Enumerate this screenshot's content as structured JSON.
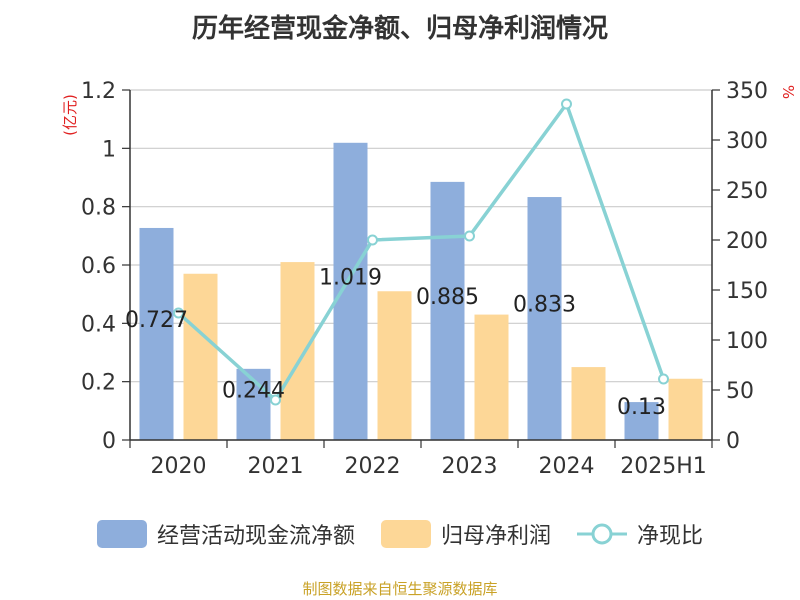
{
  "title": "历年经营现金净额、归母净利润情况",
  "left_unit": "(亿元)",
  "right_unit": "%",
  "source": "制图数据来自恒生聚源数据库",
  "colors": {
    "cash": "#8eaedc",
    "profit": "#fdd797",
    "ratio": "#88d2d4",
    "left_unit": "#e02020",
    "grid": "#cccccc",
    "axis": "#333333",
    "source": "#c9a227"
  },
  "legend": [
    {
      "label": "经营活动现金流净额",
      "key": "cash"
    },
    {
      "label": "归母净利润",
      "key": "profit"
    },
    {
      "label": "净现比",
      "key": "ratio"
    }
  ],
  "chart_data": {
    "type": "bar",
    "categories": [
      "2020",
      "2021",
      "2022",
      "2023",
      "2024",
      "2025H1"
    ],
    "series": [
      {
        "name": "经营活动现金流净额",
        "type": "bar",
        "axis": "left",
        "values": [
          0.727,
          0.244,
          1.019,
          0.885,
          0.833,
          0.13
        ],
        "labels": [
          "0.727",
          "0.244",
          "1.019",
          "0.885",
          "0.833",
          "0.13"
        ]
      },
      {
        "name": "归母净利润",
        "type": "bar",
        "axis": "left",
        "values": [
          0.57,
          0.61,
          0.51,
          0.43,
          0.25,
          0.21
        ]
      },
      {
        "name": "净现比",
        "type": "line",
        "axis": "right",
        "values": [
          127,
          40,
          200,
          204,
          336,
          61
        ]
      }
    ],
    "left_axis": {
      "min": 0,
      "max": 1.2,
      "ticks": [
        0,
        0.2,
        0.4,
        0.6,
        0.8,
        1,
        1.2
      ],
      "tick_labels": [
        "0",
        "0.2",
        "0.4",
        "0.6",
        "0.8",
        "1",
        "1.2"
      ]
    },
    "right_axis": {
      "min": 0,
      "max": 350,
      "ticks": [
        0,
        50,
        100,
        150,
        200,
        250,
        300,
        350
      ],
      "tick_labels": [
        "0",
        "50",
        "100",
        "150",
        "200",
        "250",
        "300",
        "350"
      ]
    },
    "grid": true,
    "legend_position": "bottom"
  }
}
